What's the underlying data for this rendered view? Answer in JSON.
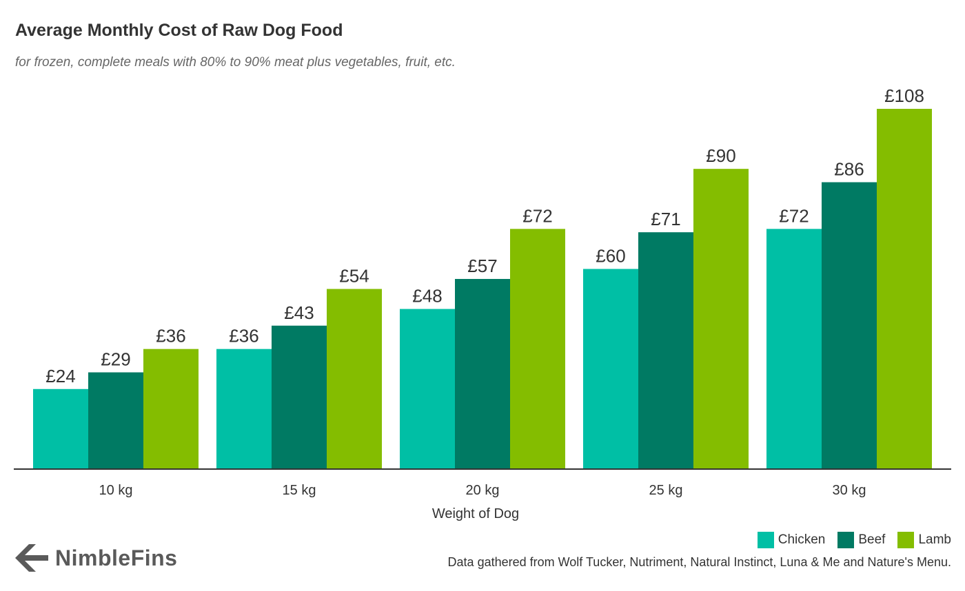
{
  "header": {
    "title": "Average Monthly Cost of Raw Dog Food",
    "subtitle": "for frozen, complete meals with 80% to 90% meat plus vegetables, fruit, etc."
  },
  "footer": {
    "brand": "NimbleFins",
    "source": "Data gathered from Wolf Tucker, Nutriment, Natural Instinct, Luna & Me and Nature's Menu."
  },
  "chart_data": {
    "type": "bar",
    "title": "Average Monthly Cost of Raw Dog Food",
    "subtitle": "for frozen, complete meals with 80% to 90% meat plus vegetables, fruit, etc.",
    "xlabel": "Weight of Dog",
    "ylabel": "",
    "categories": [
      "10 kg",
      "15 kg",
      "20 kg",
      "25 kg",
      "30 kg"
    ],
    "ylim": [
      0,
      120
    ],
    "grid": false,
    "legend_position": "bottom-right",
    "value_prefix": "£",
    "series": [
      {
        "name": "Chicken",
        "color": "#00bfa5",
        "values": [
          24,
          36,
          48,
          60,
          72
        ]
      },
      {
        "name": "Beef",
        "color": "#007a63",
        "values": [
          29,
          43,
          57,
          71,
          86
        ]
      },
      {
        "name": "Lamb",
        "color": "#84bd00",
        "values": [
          36,
          54,
          72,
          90,
          108
        ]
      }
    ]
  }
}
